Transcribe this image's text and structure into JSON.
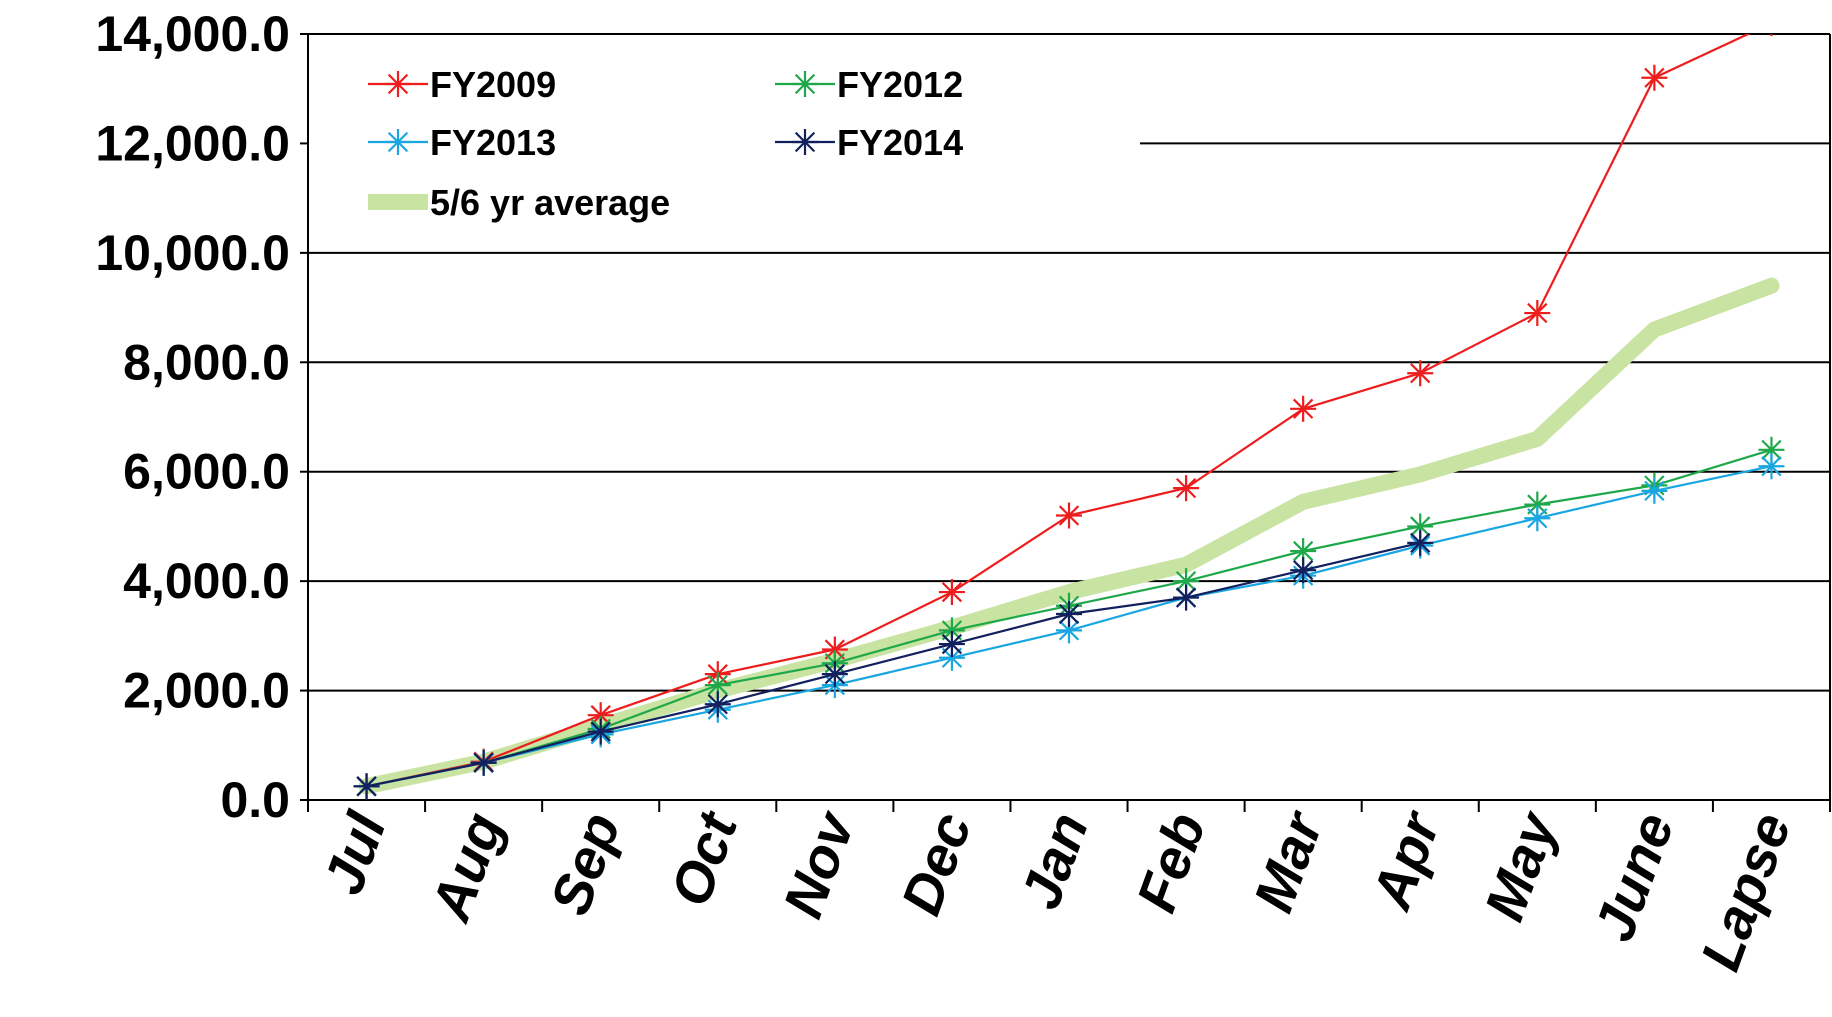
{
  "chart_data": {
    "type": "line",
    "categories": [
      "Jul",
      "Aug",
      "Sep",
      "Oct",
      "Nov",
      "Dec",
      "Jan",
      "Feb",
      "Mar",
      "Apr",
      "May",
      "June",
      "Lapse"
    ],
    "ylim": [
      0,
      14000
    ],
    "yticks": [
      "0.0",
      "2,000.0",
      "4,000.0",
      "6,000.0",
      "8,000.0",
      "10,000.0",
      "12,000.0",
      "14,000.0"
    ],
    "ytick_values": [
      0,
      2000,
      4000,
      6000,
      8000,
      10000,
      12000,
      14000
    ],
    "grid": true,
    "legend_position": "top-left",
    "series": [
      {
        "name": "FY2009",
        "color": "#ee1c1c",
        "marker": "asterisk",
        "values": [
          250,
          700,
          1550,
          2300,
          2750,
          3800,
          5200,
          5700,
          7150,
          7800,
          8900,
          13200,
          14200
        ]
      },
      {
        "name": "FY2012",
        "color": "#1fa84a",
        "marker": "asterisk",
        "values": [
          250,
          680,
          1300,
          2100,
          2500,
          3100,
          3550,
          4000,
          4550,
          5000,
          5400,
          5750,
          6400
        ]
      },
      {
        "name": "FY2013",
        "color": "#1aa6e0",
        "marker": "asterisk",
        "values": [
          250,
          680,
          1200,
          1650,
          2100,
          2600,
          3100,
          3700,
          4100,
          4650,
          5150,
          5650,
          6100
        ]
      },
      {
        "name": "FY2014",
        "color": "#12205e",
        "marker": "asterisk",
        "values": [
          250,
          680,
          1250,
          1750,
          2300,
          2850,
          3400,
          3700,
          4200,
          4700,
          null,
          null,
          null
        ]
      },
      {
        "name": "5/6 yr average",
        "color": "#c8e3a2",
        "marker": "none",
        "values": [
          250,
          700,
          1350,
          2000,
          2550,
          3150,
          3800,
          4300,
          5450,
          5950,
          6600,
          8600,
          9400
        ]
      }
    ]
  }
}
